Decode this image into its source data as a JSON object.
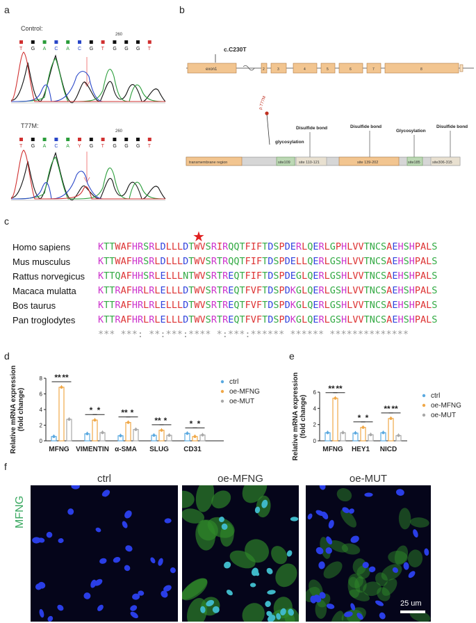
{
  "panels": {
    "a": "a",
    "b": "b",
    "c": "c",
    "d": "d",
    "e": "e",
    "f": "f"
  },
  "panel_a": {
    "control_label": "Control:",
    "control_pos": "260",
    "control_bases": [
      "T",
      "G",
      "A",
      "C",
      "A",
      "C",
      "G",
      "T",
      "G",
      "G",
      "G",
      "T"
    ],
    "mut_label": "T77M:",
    "mut_pos": "260",
    "mut_bases": [
      "T",
      "G",
      "A",
      "C",
      "A",
      "Y",
      "G",
      "T",
      "G",
      "G",
      "G",
      "T"
    ]
  },
  "panel_b": {
    "mutation_label": "c.C230T",
    "exons": [
      "exon1",
      "2",
      "3",
      "4",
      "5",
      "6",
      "7",
      "8"
    ],
    "protein_mutation": "p.T77M",
    "glyco1": "glycosylation",
    "disulfide1": "Disulfide bond",
    "disulfide2": "Disulfide bond",
    "glyco2": "Glycosylation",
    "disulfide3": "Disulfide bond",
    "domains": [
      "transmembrane region",
      "site109",
      "site 110-121",
      "site 139-202",
      "site185",
      "site306-315"
    ]
  },
  "panel_c": {
    "species": [
      "Homo sapiens",
      "Mus musculus",
      "Rattus norvegicus",
      "Macaca mulatta",
      "Bos taurus",
      "Pan troglodytes"
    ],
    "sequences": [
      "KTTWAFHRSRLDLLLDTWVSRIRQQTFIFTDSPDERLQERLGPHLVVTNCSAEHSHPALS",
      "KTTWAFHRSRLDLLLDTWVSRTRQQTFIFTDSPDELLQERLGSHLVVTNCSAEHSHPALS",
      "KTTQAFHHSRLELLLNTWVSRTREQTFIFTDSPDEGLQERLGSHLVVTNCSAEHSHPALS",
      "KTTRAFHRLRLELLLDTWVSRTREQTFVFTDSPDKGLQERLGSHLVVTNCSAEHSHPALS",
      "KTTRAFHRLRLELLLDTWVSRTREQTFVFTDSPDKGLQERLGSHLVVTNCSAEHSHPALS",
      "KTTRAFHRLRLELLLDTWVSRTREQTFVFTDSPDKGLQERLGSHLVVTNCSAEHSHPALS"
    ],
    "conservation": "*** ***: **:***:**** *:***:****** ****** ************** ",
    "marker_symbol": "★"
  },
  "chart_data": [
    {
      "type": "bar",
      "panel": "d",
      "ylabel": "Relative mRNA expression\n(fold change)",
      "categories": [
        "MFNG",
        "VIMENTIN",
        "α-SMA",
        "SLUG",
        "CD31"
      ],
      "ylim": [
        0,
        8
      ],
      "yticks": [
        "0",
        "2",
        "4",
        "6",
        "8"
      ],
      "series": [
        {
          "name": "ctrl",
          "color": "#5aa9e0",
          "values": [
            0.55,
            0.9,
            0.65,
            0.7,
            0.95
          ]
        },
        {
          "name": "oe-MFNG",
          "color": "#f0a848",
          "values": [
            6.85,
            2.65,
            2.35,
            1.35,
            0.55
          ]
        },
        {
          "name": "oe-MUT",
          "color": "#a8a8a8",
          "values": [
            2.75,
            1.05,
            1.45,
            0.7,
            0.75
          ]
        }
      ],
      "significance": [
        "**",
        "**",
        "*",
        "*",
        "**",
        "*",
        "**",
        "*",
        "*",
        "*"
      ]
    },
    {
      "type": "bar",
      "panel": "e",
      "ylabel": "Relative mRNA expression\n(fold change)",
      "categories": [
        "MFNG",
        "HEY1",
        "NICD"
      ],
      "ylim": [
        0,
        6
      ],
      "yticks": [
        "0",
        "2",
        "4",
        "6"
      ],
      "series": [
        {
          "name": "ctrl",
          "color": "#5aa9e0",
          "values": [
            1.0,
            0.95,
            1.0
          ]
        },
        {
          "name": "oe-MFNG",
          "color": "#f0a848",
          "values": [
            5.25,
            1.65,
            2.75
          ]
        },
        {
          "name": "oe-MUT",
          "color": "#a8a8a8",
          "values": [
            1.0,
            0.75,
            0.65
          ]
        }
      ],
      "significance": [
        "**",
        "**",
        "*",
        "*",
        "**",
        "**"
      ]
    }
  ],
  "panel_f": {
    "row_label": "MFNG",
    "columns": [
      "ctrl",
      "oe-MFNG",
      "oe-MUT"
    ],
    "scale_bar": "25 um"
  }
}
